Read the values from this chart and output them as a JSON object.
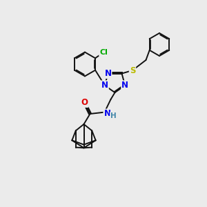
{
  "background_color": "#ebebeb",
  "fig_size": [
    3.0,
    3.0
  ],
  "dpi": 100,
  "atom_colors": {
    "N": "#0000EE",
    "O": "#DD0000",
    "S": "#BBBB00",
    "Cl": "#00AA00",
    "C": "#000000",
    "H": "#4488AA"
  },
  "bond_color": "#111111",
  "bond_width": 1.4,
  "font_size_atom": 8.5,
  "font_size_small": 7.0
}
